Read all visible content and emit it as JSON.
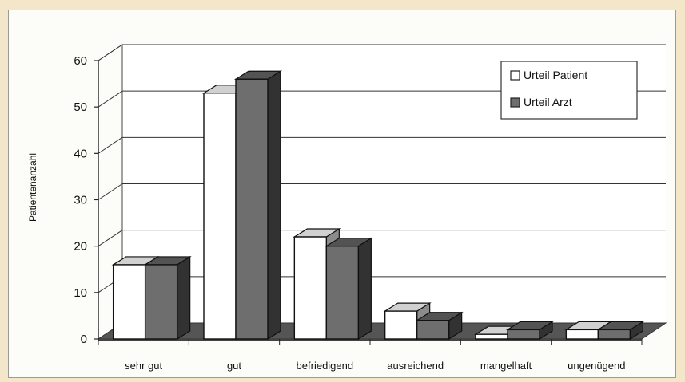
{
  "chart_data": {
    "type": "bar",
    "title": "",
    "xlabel": "",
    "ylabel": "Patientenanzahl",
    "ylim": [
      0,
      60
    ],
    "yticks": [
      0,
      10,
      20,
      30,
      40,
      50,
      60
    ],
    "grid": true,
    "legend_position": "top-right",
    "categories": [
      "sehr gut",
      "gut",
      "befriedigend",
      "ausreichend",
      "mangelhaft",
      "ungenügend"
    ],
    "series": [
      {
        "name": "Urteil Patient",
        "values": [
          16,
          53,
          22,
          6,
          1,
          2
        ],
        "color": "#ffffff"
      },
      {
        "name": "Urteil Arzt",
        "values": [
          16,
          56,
          20,
          4,
          2,
          2
        ],
        "color": "#6e6e6e"
      }
    ]
  }
}
